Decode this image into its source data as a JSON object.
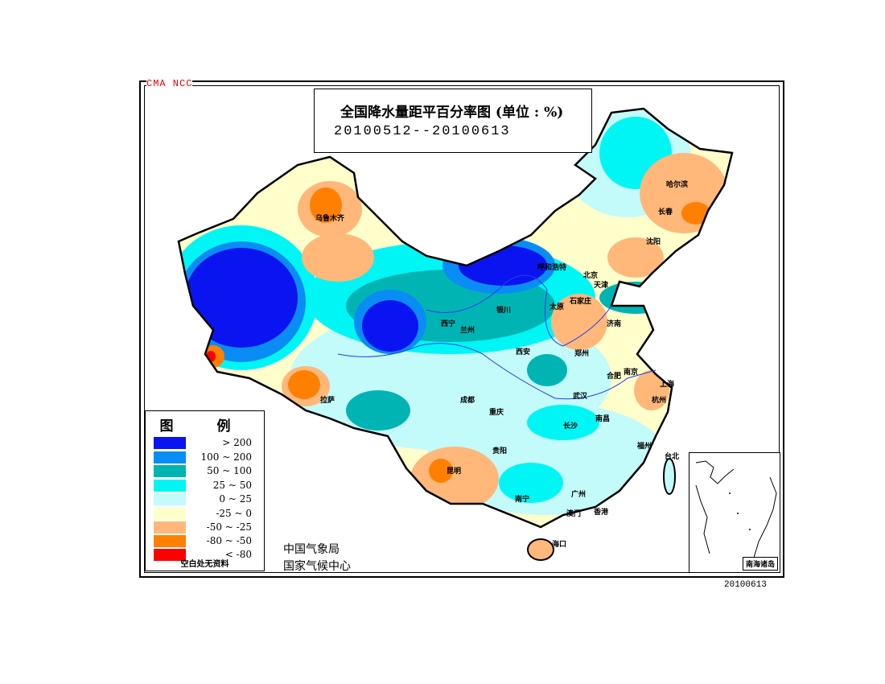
{
  "header": {
    "agency_tag": "CMA  NCC",
    "title": "全国降水量距平百分率图 (单位 : %)",
    "date_range": "20100512--20100613"
  },
  "legend": {
    "title": "图 例",
    "items": [
      {
        "label": "> 200",
        "color": "#0a14f0"
      },
      {
        "label": "100 ~ 200",
        "color": "#0a8cf5"
      },
      {
        "label": "50 ~ 100",
        "color": "#00b4b4"
      },
      {
        "label": "25 ~ 50",
        "color": "#00f5f5"
      },
      {
        "label": "0 ~ 25",
        "color": "#c3fafa"
      },
      {
        "label": "-25 ~ 0",
        "color": "#ffffcc"
      },
      {
        "label": "-50 ~ -25",
        "color": "#ffb87a"
      },
      {
        "label": "-80 ~ -50",
        "color": "#ff8000"
      },
      {
        "label": "< -80",
        "color": "#ff0000"
      }
    ],
    "note": "空白处无资料"
  },
  "organizations": [
    "中国气象局",
    "国家气候中心"
  ],
  "cities": [
    "乌鲁木齐",
    "哈尔滨",
    "长春",
    "沈阳",
    "呼和浩特",
    "北京",
    "天津",
    "石家庄",
    "太原",
    "济南",
    "银川",
    "西宁",
    "兰州",
    "西安",
    "郑州",
    "合肥",
    "南京",
    "上海",
    "杭州",
    "武汉",
    "成都",
    "重庆",
    "拉萨",
    "长沙",
    "南昌",
    "贵阳",
    "昆明",
    "福州",
    "台北",
    "南宁",
    "广州",
    "澳门",
    "香港",
    "海口"
  ],
  "inset": {
    "label": "南海诸岛"
  },
  "footer_date": "20100613"
}
